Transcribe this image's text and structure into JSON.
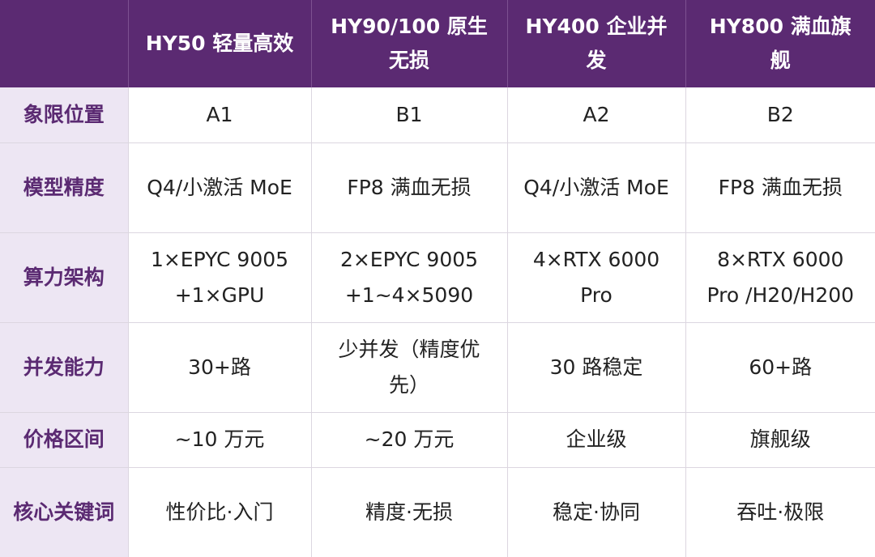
{
  "header": {
    "corner": "",
    "columns": [
      "HY50 轻量高效",
      "HY90/100 原生无损",
      "HY400 企业并发",
      "HY800 满血旗舰"
    ]
  },
  "rows": [
    {
      "label": "象限位置",
      "cells": [
        "A1",
        "B1",
        "A2",
        "B2"
      ]
    },
    {
      "label": "模型精度",
      "cells": [
        "Q4/小激活 MoE",
        "FP8 满血无损",
        "Q4/小激活 MoE",
        "FP8 满血无损"
      ]
    },
    {
      "label": "算力架构",
      "cells": [
        "1×EPYC 9005 +1×GPU",
        "2×EPYC 9005 +1~4×5090",
        "4×RTX 6000 Pro",
        "8×RTX 6000 Pro /H20/H200"
      ]
    },
    {
      "label": "并发能力",
      "cells": [
        "30+路",
        "少并发（精度优先）",
        "30 路稳定",
        "60+路"
      ]
    },
    {
      "label": "价格区间",
      "cells": [
        "~10 万元",
        "~20 万元",
        "企业级",
        "旗舰级"
      ]
    },
    {
      "label": "核心关键词",
      "cells": [
        "性价比·入门",
        "精度·无损",
        "稳定·协同",
        "吞吐·极限"
      ]
    }
  ],
  "colors": {
    "header_bg": "#5b2a72",
    "label_bg": "#ede6f3",
    "label_text": "#5b2a72"
  }
}
